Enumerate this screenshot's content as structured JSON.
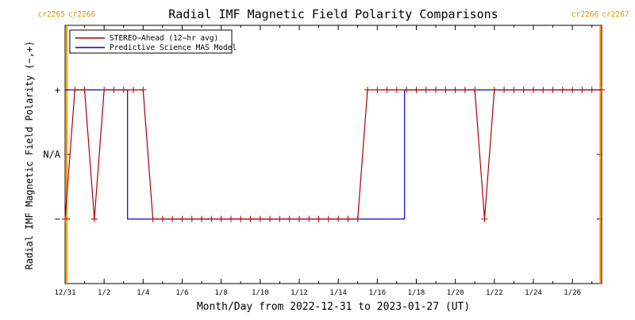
{
  "chart_data": {
    "type": "line",
    "title": "Radial IMF Magnetic Field Polarity Comparisons",
    "xlabel": "Month/Day from 2022-12-31 to 2023-01-27 (UT)",
    "ylabel": "Radial IMF Magnetic Field Polarity (−,+)",
    "x_tick_values": [
      0,
      2,
      4,
      6,
      8,
      10,
      12,
      14,
      16,
      18,
      20,
      22,
      24,
      26
    ],
    "x_tick_labels": [
      "12/31",
      "1/2",
      "1/4",
      "1/6",
      "1/8",
      "1/10",
      "1/12",
      "1/14",
      "1/16",
      "1/18",
      "1/20",
      "1/22",
      "1/24",
      "1/26"
    ],
    "xlim": [
      0,
      27.5
    ],
    "ylim": [
      -2,
      2
    ],
    "y_tick_values": [
      1,
      0,
      -1
    ],
    "y_tick_labels": [
      "+",
      "N/A",
      "−"
    ],
    "carrington_markers": [
      {
        "x": 0.08,
        "left_label": "cr2265",
        "right_label": "cr2266"
      },
      {
        "x": 27.43,
        "left_label": "cr2266",
        "right_label": "cr2267"
      }
    ],
    "series": [
      {
        "name": "STEREO−Ahead (12−hr avg)",
        "color": "#aa0000",
        "marker": "+",
        "x": [
          0.0,
          0.5,
          1.0,
          1.5,
          2.0,
          2.5,
          3.0,
          3.5,
          4.0,
          4.5,
          5.0,
          5.5,
          6.0,
          6.5,
          7.0,
          7.5,
          8.0,
          8.5,
          9.0,
          9.5,
          10.0,
          10.5,
          11.0,
          11.5,
          12.0,
          12.5,
          13.0,
          13.5,
          14.0,
          14.5,
          15.0,
          15.5,
          16.0,
          16.5,
          17.0,
          17.5,
          18.0,
          18.5,
          19.0,
          19.5,
          20.0,
          20.5,
          21.0,
          21.5,
          22.0,
          22.5,
          23.0,
          23.5,
          24.0,
          24.5,
          25.0,
          25.5,
          26.0,
          26.5,
          27.0,
          27.5
        ],
        "y": [
          -1,
          1,
          1,
          -1,
          1,
          1,
          1,
          1,
          1,
          -1,
          -1,
          -1,
          -1,
          -1,
          -1,
          -1,
          -1,
          -1,
          -1,
          -1,
          -1,
          -1,
          -1,
          -1,
          -1,
          -1,
          -1,
          -1,
          -1,
          -1,
          -1,
          1,
          1,
          1,
          1,
          1,
          1,
          1,
          1,
          1,
          1,
          1,
          1,
          -1,
          1,
          1,
          1,
          1,
          1,
          1,
          1,
          1,
          1,
          1,
          1,
          1
        ]
      },
      {
        "name": "Predictive Science MAS Model",
        "color": "#0000cc",
        "marker": "none",
        "x": [
          0.0,
          3.2,
          3.2,
          17.4,
          17.4,
          27.5
        ],
        "y": [
          1,
          1,
          -1,
          -1,
          1,
          1
        ]
      }
    ],
    "grid": false,
    "legend": "top-left"
  },
  "colors": {
    "carrington_line": "#ff9900",
    "carrington_text": "#e69500",
    "axis": "#000000"
  }
}
